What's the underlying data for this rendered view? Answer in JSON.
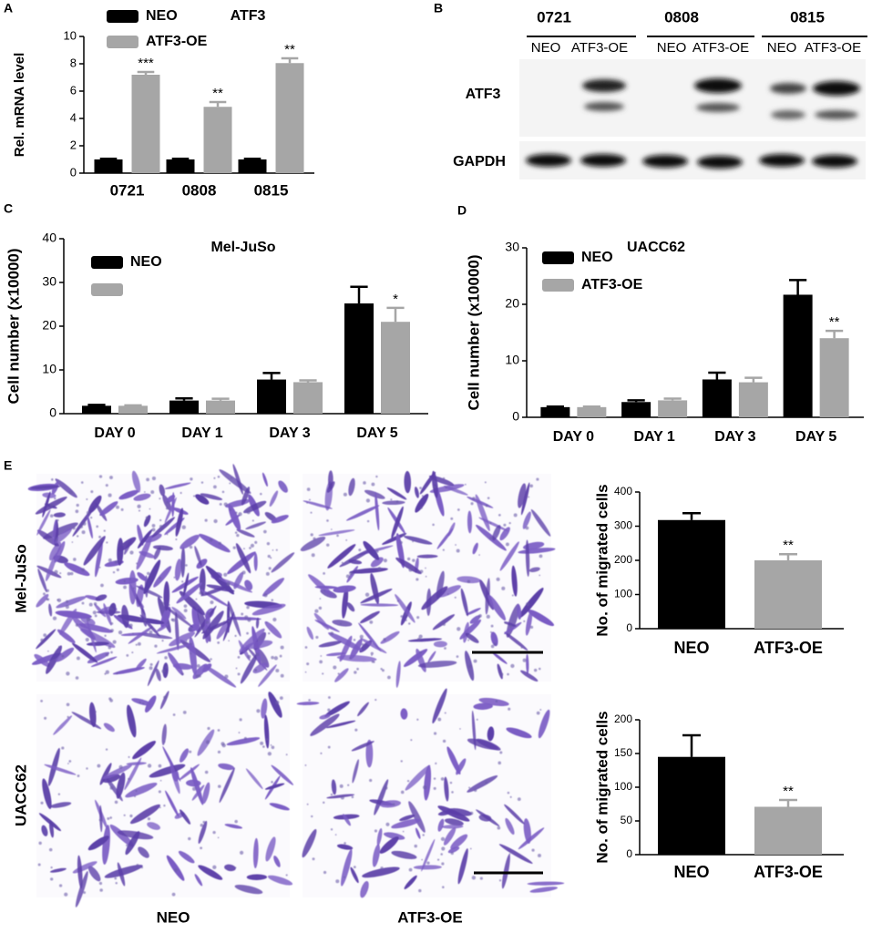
{
  "panel_labels": [
    "A",
    "B",
    "C",
    "D",
    "E"
  ],
  "blot": {
    "groups": [
      "0721",
      "0808",
      "0815"
    ],
    "lanes": [
      "NEO",
      "ATF3-OE",
      "NEO",
      "ATF3-OE",
      "NEO",
      "ATF3-OE"
    ],
    "rows": [
      "ATF3",
      "GAPDH"
    ]
  },
  "micrographs": {
    "rows": [
      "Mel-JuSo",
      "UACC62"
    ],
    "columns": [
      "NEO",
      "ATF3-OE"
    ]
  },
  "chart_data": [
    {
      "type": "bar",
      "title": "ATF3",
      "ylabel": "Rel. mRNA level",
      "categories": [
        "0721",
        "0808",
        "0815"
      ],
      "series": [
        {
          "name": "NEO",
          "color": "#000000",
          "values": [
            1,
            1,
            1
          ],
          "errors": [
            0.05,
            0.05,
            0.05
          ]
        },
        {
          "name": "ATF3-OE",
          "color": "#a6a6a6",
          "values": [
            7.2,
            4.85,
            8.05
          ],
          "errors": [
            0.2,
            0.35,
            0.35
          ],
          "significance": [
            "***",
            "**",
            "**"
          ]
        }
      ],
      "ylim": [
        0,
        10
      ],
      "yticks": [
        0,
        2,
        4,
        6,
        8,
        10
      ],
      "legend": true
    },
    {
      "type": "bar",
      "title": "Mel-JuSo",
      "ylabel": "Cell number (x10000)",
      "categories": [
        "DAY 0",
        "DAY 1",
        "DAY 3",
        "DAY 5"
      ],
      "series": [
        {
          "name": "NEO",
          "color": "#000000",
          "values": [
            1.8,
            3,
            7.8,
            25.2
          ],
          "errors": [
            0.2,
            0.5,
            1.5,
            3.8
          ]
        },
        {
          "name": null,
          "color": "#a6a6a6",
          "values": [
            1.8,
            3,
            7.2,
            21
          ],
          "errors": [
            0.1,
            0.4,
            0.4,
            3.2
          ],
          "significance": [
            null,
            null,
            null,
            "*"
          ]
        }
      ],
      "ylim": [
        0,
        40
      ],
      "yticks": [
        0,
        10,
        20,
        30,
        40
      ],
      "legend": true
    },
    {
      "type": "bar",
      "title": "UACC62",
      "ylabel": "Cell number (x10000)",
      "categories": [
        "DAY 0",
        "DAY 1",
        "DAY 3",
        "DAY 5"
      ],
      "series": [
        {
          "name": "NEO",
          "color": "#000000",
          "values": [
            1.8,
            2.7,
            6.7,
            21.7
          ],
          "errors": [
            0.1,
            0.3,
            1.2,
            2.6
          ]
        },
        {
          "name": "ATF3-OE",
          "color": "#a6a6a6",
          "values": [
            1.8,
            3,
            6.2,
            14
          ],
          "errors": [
            0.1,
            0.3,
            0.8,
            1.3
          ],
          "significance": [
            null,
            null,
            null,
            "**"
          ]
        }
      ],
      "ylim": [
        0,
        30
      ],
      "yticks": [
        0,
        10,
        20,
        30
      ],
      "legend": true
    },
    {
      "type": "bar",
      "ylabel": "No. of migrated cells",
      "categories": [
        "NEO",
        "ATF3-OE"
      ],
      "series": [
        {
          "colors": [
            "#000000",
            "#a6a6a6"
          ],
          "values": [
            318,
            200
          ],
          "errors": [
            20,
            18
          ],
          "significance": [
            null,
            "**"
          ]
        }
      ],
      "ylim": [
        0,
        400
      ],
      "yticks": [
        0,
        100,
        200,
        300,
        400
      ],
      "legend": false
    },
    {
      "type": "bar",
      "ylabel": "No. of migrated cells",
      "categories": [
        "NEO",
        "ATF3-OE"
      ],
      "series": [
        {
          "colors": [
            "#000000",
            "#a6a6a6"
          ],
          "values": [
            145,
            71
          ],
          "errors": [
            32,
            10
          ],
          "significance": [
            null,
            "**"
          ]
        }
      ],
      "ylim": [
        0,
        200
      ],
      "yticks": [
        0,
        50,
        100,
        150,
        200
      ],
      "legend": false
    }
  ]
}
